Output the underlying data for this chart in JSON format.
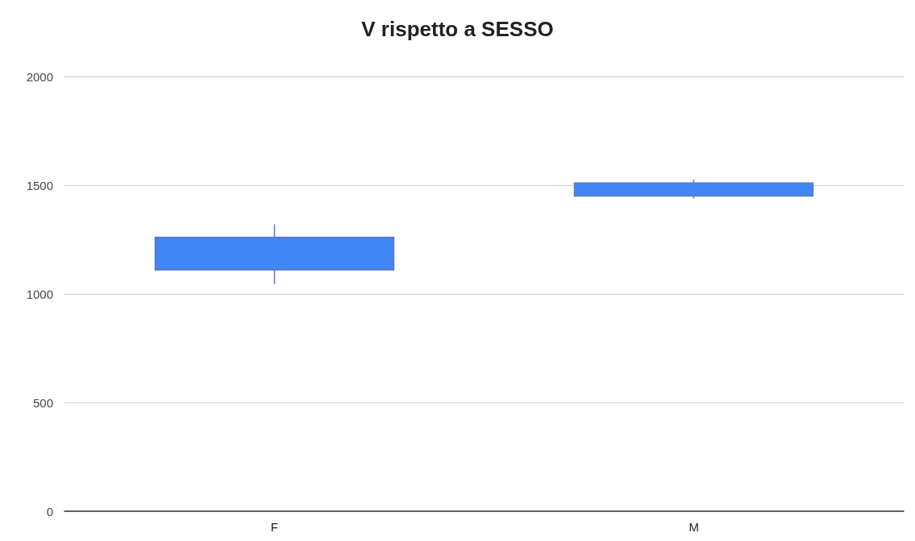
{
  "chart_data": {
    "type": "candlestick",
    "title": "V rispetto a SESSO",
    "categories": [
      "F",
      "M"
    ],
    "ohlc": [
      [
        1110,
        1320,
        1045,
        1260
      ],
      [
        1450,
        1525,
        1440,
        1510
      ]
    ],
    "color": "#4285f4",
    "ylim": [
      0,
      2000
    ],
    "yticks": [
      0,
      500,
      1000,
      1500,
      2000
    ],
    "grid": "y"
  }
}
